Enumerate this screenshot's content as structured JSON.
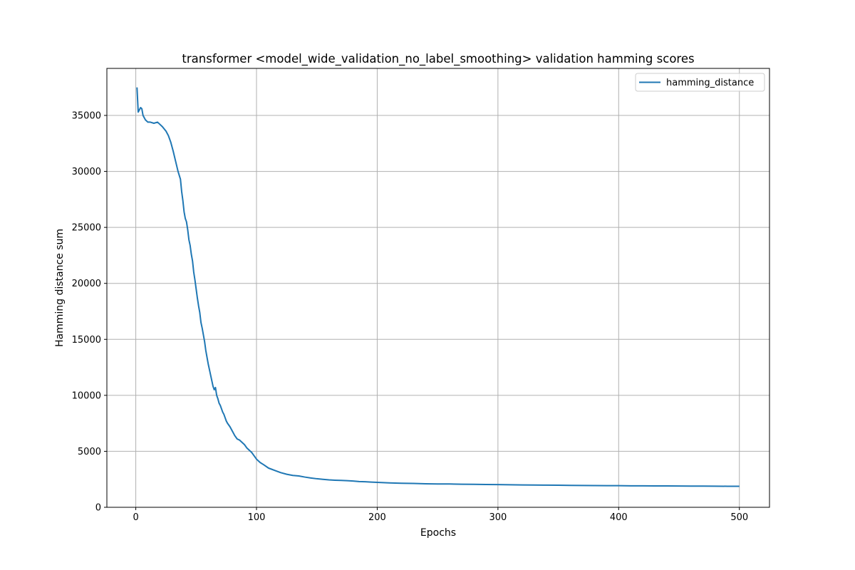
{
  "chart_data": {
    "type": "line",
    "title": "transformer <model_wide_validation_no_label_smoothing> validation hamming scores",
    "xlabel": "Epochs",
    "ylabel": "Hamming distance sum",
    "xlim": [
      -23.95,
      524.95
    ],
    "ylim": [
      0,
      39200
    ],
    "xticks": [
      0,
      100,
      200,
      300,
      400,
      500
    ],
    "yticks": [
      0,
      5000,
      10000,
      15000,
      20000,
      25000,
      30000,
      35000
    ],
    "grid": true,
    "legend_position": "upper right",
    "series": [
      {
        "name": "hamming_distance",
        "color": "#1f77b4",
        "x": [
          1,
          2,
          3,
          4,
          5,
          6,
          8,
          10,
          12,
          15,
          18,
          20,
          22,
          25,
          27,
          29,
          31,
          33,
          35,
          37,
          38,
          39,
          40,
          41,
          42,
          43,
          44,
          45,
          46,
          47,
          48,
          49,
          50,
          51,
          52,
          53,
          54,
          55,
          56,
          57,
          58,
          59,
          60,
          61,
          62,
          63,
          64,
          65,
          66,
          67,
          68,
          69,
          70,
          71,
          72,
          73,
          74,
          75,
          76,
          78,
          80,
          82,
          84,
          86,
          88,
          90,
          92,
          94,
          96,
          98,
          100,
          103,
          106,
          110,
          115,
          120,
          125,
          130,
          135,
          140,
          145,
          150,
          155,
          160,
          165,
          170,
          175,
          180,
          185,
          190,
          195,
          200,
          205,
          210,
          220,
          230,
          240,
          250,
          260,
          270,
          280,
          290,
          300,
          310,
          320,
          330,
          340,
          350,
          360,
          370,
          380,
          390,
          400,
          410,
          420,
          430,
          440,
          450,
          460,
          470,
          480,
          490,
          500
        ],
        "values": [
          37500,
          35300,
          35500,
          35700,
          35600,
          35000,
          34600,
          34400,
          34400,
          34300,
          34400,
          34200,
          34000,
          33600,
          33200,
          32600,
          31800,
          30900,
          30000,
          29300,
          28200,
          27400,
          26400,
          25800,
          25500,
          24800,
          23900,
          23400,
          22600,
          22000,
          21000,
          20300,
          19500,
          18700,
          18000,
          17400,
          16500,
          16000,
          15400,
          14800,
          14000,
          13400,
          12800,
          12300,
          11800,
          11300,
          10800,
          10500,
          10700,
          10000,
          9700,
          9300,
          9100,
          8800,
          8500,
          8300,
          8000,
          7700,
          7500,
          7200,
          6800,
          6400,
          6100,
          6000,
          5800,
          5600,
          5300,
          5100,
          4900,
          4600,
          4300,
          4000,
          3800,
          3500,
          3300,
          3100,
          2950,
          2850,
          2800,
          2700,
          2620,
          2550,
          2500,
          2450,
          2420,
          2400,
          2380,
          2350,
          2300,
          2280,
          2250,
          2230,
          2200,
          2180,
          2150,
          2130,
          2100,
          2080,
          2080,
          2060,
          2050,
          2040,
          2030,
          2010,
          2000,
          1990,
          1980,
          1970,
          1960,
          1950,
          1940,
          1935,
          1930,
          1920,
          1915,
          1910,
          1905,
          1900,
          1895,
          1890,
          1885,
          1880,
          1880
        ]
      }
    ]
  }
}
